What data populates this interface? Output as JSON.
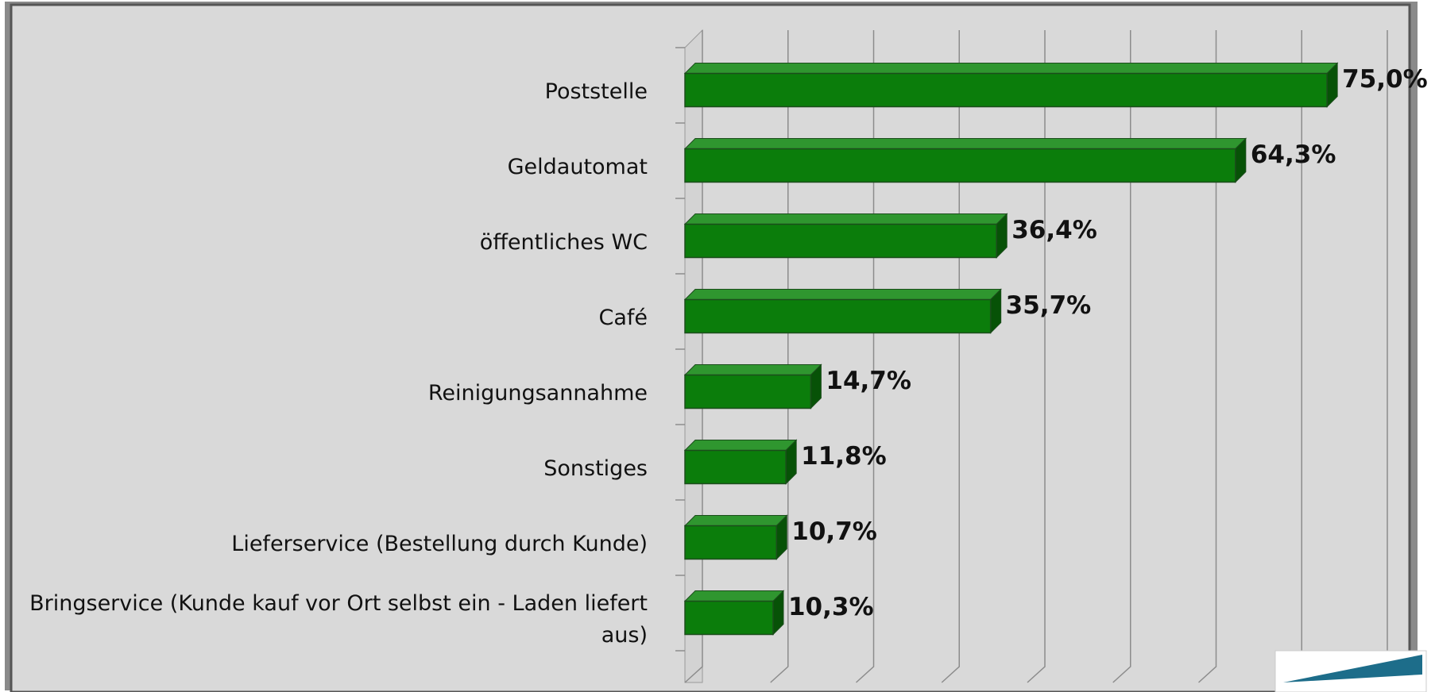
{
  "chart_data": {
    "type": "bar",
    "orientation": "horizontal",
    "categories": [
      "Poststelle",
      "Geldautomat",
      "öffentliches WC",
      "Café",
      "Reinigungsannahme",
      "Sonstiges",
      "Lieferservice (Bestellung durch Kunde)",
      "Bringservice (Kunde kauf vor Ort selbst ein - Laden liefert aus)"
    ],
    "values": [
      75.0,
      64.3,
      36.4,
      35.7,
      14.7,
      11.8,
      10.7,
      10.3
    ],
    "value_labels": [
      "75,0%",
      "64,3%",
      "36,4%",
      "35,7%",
      "14,7%",
      "11,8%",
      "10,7%",
      "10,3%"
    ],
    "color": "#0b7d0b",
    "xlim": [
      0,
      80
    ],
    "xticks": [
      0,
      10,
      20,
      30,
      40,
      50,
      60,
      70,
      80
    ],
    "grid": true
  }
}
